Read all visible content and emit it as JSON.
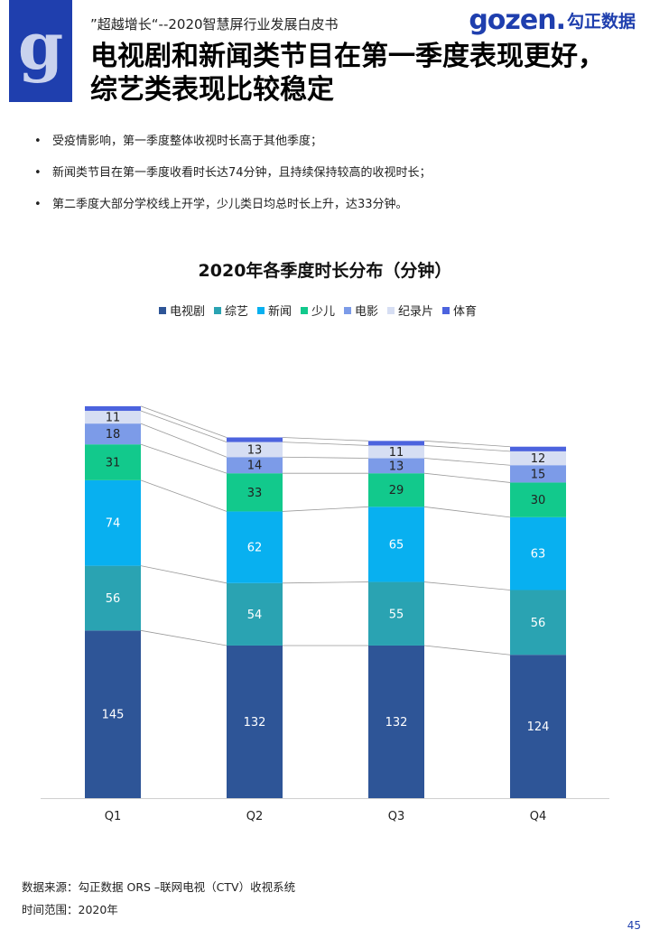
{
  "header": {
    "logo_letter": "g",
    "subtitle": "”超越增长“--2020智慧屏行业发展白皮书",
    "brand_en": "gozen.",
    "brand_cn": "勾正数据"
  },
  "title_line1": "电视剧和新闻类节目在第一季度表现更好，",
  "title_line2": "综艺类表现比较稳定",
  "bullets": [
    "受疫情影响，第一季度整体收视时长高于其他季度；",
    "新闻类节目在第一季度收看时长达74分钟，且持续保持较高的收视时长；",
    "第二季度大部分学校线上开学，少儿类日均总时长上升，达33分钟。"
  ],
  "chart_data": {
    "type": "bar",
    "stacked": true,
    "title": "2020年各季度时长分布（分钟）",
    "legend_position": "top",
    "categories": [
      "Q1",
      "Q2",
      "Q3",
      "Q4"
    ],
    "series": [
      {
        "name": "电视剧",
        "color": "#2e5597",
        "values": [
          145,
          132,
          132,
          124
        ]
      },
      {
        "name": "综艺",
        "color": "#2aa3b2",
        "values": [
          56,
          54,
          55,
          56
        ]
      },
      {
        "name": "新闻",
        "color": "#08b0f0",
        "values": [
          74,
          62,
          65,
          63
        ]
      },
      {
        "name": "少儿",
        "color": "#12c98c",
        "values": [
          31,
          33,
          29,
          30
        ]
      },
      {
        "name": "电影",
        "color": "#7c9be8",
        "values": [
          18,
          14,
          13,
          15
        ]
      },
      {
        "name": "纪录片",
        "color": "#d6def3",
        "values": [
          11,
          13,
          11,
          12
        ]
      },
      {
        "name": "体育",
        "color": "#4c63de",
        "values": [
          4,
          4,
          4,
          4
        ]
      }
    ],
    "grid": false
  },
  "footer": {
    "source": "数据来源：勾正数据 ORS –联网电视（CTV）收视系统",
    "range": "时间范围：2020年",
    "page": "45"
  }
}
